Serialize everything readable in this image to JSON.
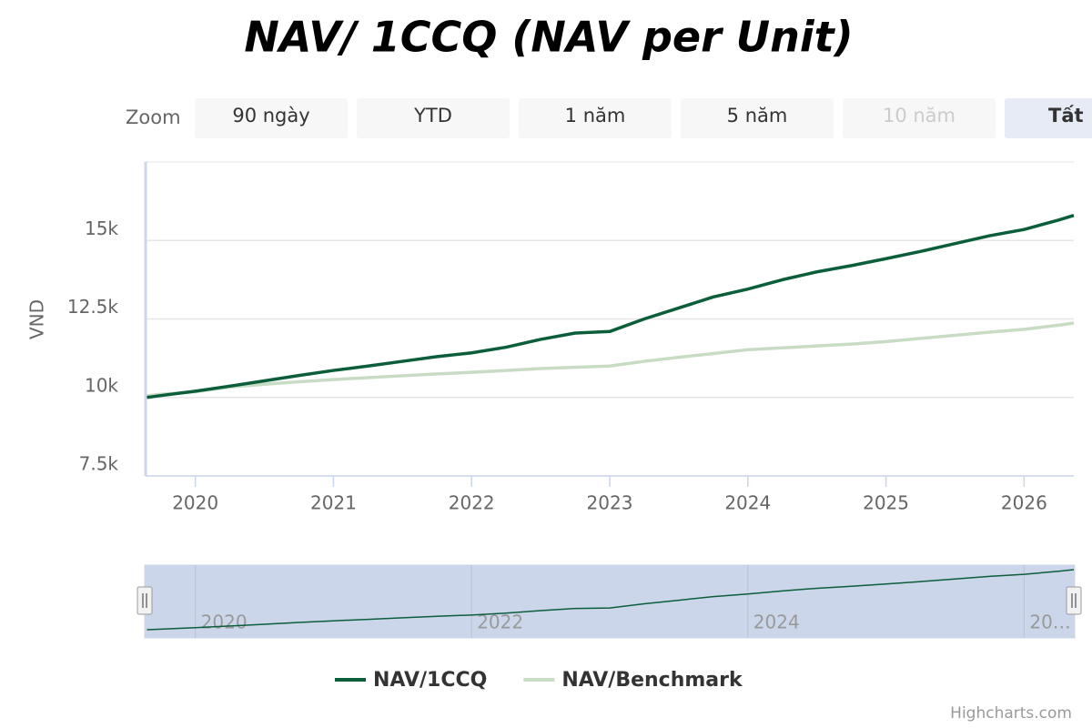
{
  "chart_data": {
    "type": "line",
    "title": "NAV/ 1CCQ (NAV per Unit)",
    "y_label": "VND",
    "range_selector": {
      "label": "Zoom",
      "buttons": [
        "90 ngày",
        "YTD",
        "1 năm",
        "5 năm",
        "10 năm",
        "Tất"
      ],
      "selected": 5,
      "disabled": [
        4
      ]
    },
    "x": [
      2019.65,
      2019.75,
      2020,
      2020.25,
      2020.5,
      2020.75,
      2021,
      2021.25,
      2021.5,
      2021.75,
      2022,
      2022.25,
      2022.5,
      2022.75,
      2023,
      2023.25,
      2023.5,
      2023.75,
      2024,
      2024.25,
      2024.5,
      2024.75,
      2025,
      2025.25,
      2025.5,
      2025.75,
      2026,
      2026.25,
      2026.36
    ],
    "series": [
      {
        "name": "NAV/1CCQ",
        "color": "#0b5e3a",
        "values": [
          10000,
          10060,
          10200,
          10360,
          10530,
          10700,
          10860,
          11000,
          11150,
          11300,
          11420,
          11600,
          11850,
          12050,
          12100,
          12500,
          12850,
          13200,
          13450,
          13750,
          14000,
          14200,
          14420,
          14650,
          14900,
          15150,
          15350,
          15650,
          15800
        ]
      },
      {
        "name": "NAV/Benchmark",
        "color": "#c8dcc4",
        "values": [
          10050,
          10100,
          10180,
          10330,
          10420,
          10500,
          10570,
          10630,
          10690,
          10750,
          10800,
          10860,
          10920,
          10960,
          11000,
          11150,
          11280,
          11400,
          11520,
          11580,
          11640,
          11700,
          11780,
          11880,
          11980,
          12080,
          12170,
          12300,
          12370
        ]
      }
    ],
    "xlim": [
      2019.64,
      2026.36
    ],
    "xticks": [
      2020,
      2021,
      2022,
      2023,
      2024,
      2025,
      2026
    ],
    "ylim": [
      7500,
      17500
    ],
    "yticks": [
      {
        "value": 7500,
        "label": "7.5k"
      },
      {
        "value": 10000,
        "label": "10k"
      },
      {
        "value": 12500,
        "label": "12.5k"
      },
      {
        "value": 15000,
        "label": "15k"
      }
    ],
    "grid": true,
    "navigator": {
      "xticks": [
        2020,
        2022,
        2024,
        {
          "value": 2026,
          "label": "20…"
        }
      ]
    },
    "credits": "Highcharts.com"
  }
}
